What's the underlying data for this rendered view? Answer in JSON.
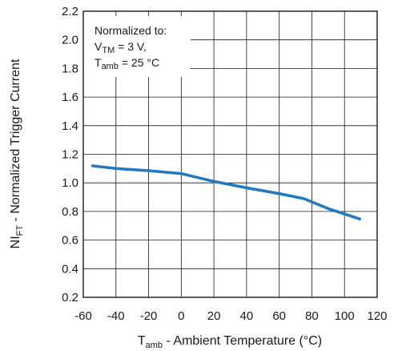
{
  "chart_data": {
    "type": "line",
    "xlabel": {
      "main": "T",
      "sub": "amb",
      "rest": " - Ambient Temperature (°C)"
    },
    "ylabel": {
      "main": "NI",
      "sub": "FT",
      "rest": " - Normalized Trigger Current"
    },
    "xlim": [
      -60,
      120
    ],
    "ylim": [
      0.2,
      2.2
    ],
    "x_ticks": [
      -60,
      -40,
      -20,
      0,
      20,
      40,
      60,
      80,
      100,
      120
    ],
    "x_tick_labels": [
      "-60",
      "-40",
      "-20",
      "0",
      "20",
      "40",
      "60",
      "80",
      "100",
      "120"
    ],
    "y_ticks": [
      0.2,
      0.4,
      0.6,
      0.8,
      1.0,
      1.2,
      1.4,
      1.6,
      1.8,
      2.0,
      2.2
    ],
    "y_tick_labels": [
      "0.2",
      "0.4",
      "0.6",
      "0.8",
      "1.0",
      "1.2",
      "1.4",
      "1.6",
      "1.8",
      "2.0",
      "2.2"
    ],
    "grid": true,
    "series": [
      {
        "color": "#1f78c1",
        "x": [
          -55,
          -40,
          -20,
          0,
          20,
          40,
          60,
          75,
          90,
          110
        ],
        "y": [
          1.12,
          1.1,
          1.085,
          1.065,
          1.01,
          0.965,
          0.925,
          0.89,
          0.82,
          0.745
        ]
      }
    ],
    "annotation": {
      "line1": "Normalized to:",
      "line2": {
        "main": "V",
        "sub": "TM",
        "rest": " = 3 V,"
      },
      "line3": {
        "main": "T",
        "sub": "amb",
        "rest": " = 25 °C"
      }
    }
  }
}
